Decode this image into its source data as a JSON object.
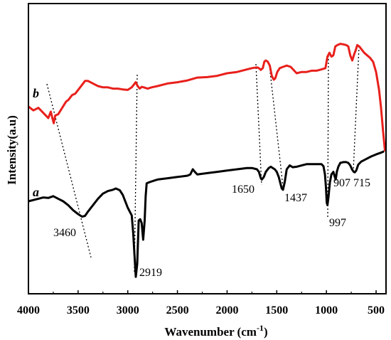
{
  "chart_data": {
    "type": "line",
    "title": "",
    "xlabel": "Wavenumber (cm",
    "xlabel_sup": "-1",
    "xlabel_end": ")",
    "ylabel": "Intensity(a.u)",
    "xlim": [
      4000,
      400
    ],
    "ylim": [
      0,
      1
    ],
    "x_reversed": true,
    "x_ticks": [
      4000,
      3500,
      3000,
      2500,
      2000,
      1500,
      1000,
      500
    ],
    "y_ticks": [],
    "grid": false,
    "legend": "none",
    "series": [
      {
        "label": "b",
        "color": "#e8201c",
        "points": [
          [
            4000,
            0.695
          ],
          [
            3950,
            0.68
          ],
          [
            3900,
            0.69
          ],
          [
            3850,
            0.67
          ],
          [
            3800,
            0.65
          ],
          [
            3775,
            0.675
          ],
          [
            3760,
            0.652
          ],
          [
            3745,
            0.63
          ],
          [
            3730,
            0.66
          ],
          [
            3700,
            0.665
          ],
          [
            3660,
            0.69
          ],
          [
            3620,
            0.715
          ],
          [
            3600,
            0.72
          ],
          [
            3560,
            0.74
          ],
          [
            3530,
            0.745
          ],
          [
            3500,
            0.76
          ],
          [
            3460,
            0.78
          ],
          [
            3430,
            0.795
          ],
          [
            3400,
            0.795
          ],
          [
            3350,
            0.785
          ],
          [
            3300,
            0.775
          ],
          [
            3250,
            0.77
          ],
          [
            3200,
            0.77
          ],
          [
            3150,
            0.765
          ],
          [
            3100,
            0.765
          ],
          [
            3050,
            0.762
          ],
          [
            3000,
            0.76
          ],
          [
            2960,
            0.77
          ],
          [
            2920,
            0.79
          ],
          [
            2900,
            0.775
          ],
          [
            2880,
            0.765
          ],
          [
            2860,
            0.772
          ],
          [
            2840,
            0.77
          ],
          [
            2800,
            0.765
          ],
          [
            2760,
            0.77
          ],
          [
            2700,
            0.775
          ],
          [
            2600,
            0.785
          ],
          [
            2500,
            0.79
          ],
          [
            2400,
            0.797
          ],
          [
            2300,
            0.808
          ],
          [
            2200,
            0.81
          ],
          [
            2100,
            0.815
          ],
          [
            2000,
            0.825
          ],
          [
            1900,
            0.83
          ],
          [
            1800,
            0.84
          ],
          [
            1750,
            0.845
          ],
          [
            1700,
            0.848
          ],
          [
            1680,
            0.845
          ],
          [
            1660,
            0.838
          ],
          [
            1640,
            0.845
          ],
          [
            1625,
            0.87
          ],
          [
            1610,
            0.875
          ],
          [
            1590,
            0.87
          ],
          [
            1570,
            0.855
          ],
          [
            1550,
            0.815
          ],
          [
            1530,
            0.8
          ],
          [
            1515,
            0.805
          ],
          [
            1495,
            0.83
          ],
          [
            1470,
            0.845
          ],
          [
            1437,
            0.85
          ],
          [
            1400,
            0.855
          ],
          [
            1360,
            0.85
          ],
          [
            1300,
            0.825
          ],
          [
            1250,
            0.83
          ],
          [
            1200,
            0.83
          ],
          [
            1150,
            0.835
          ],
          [
            1100,
            0.835
          ],
          [
            1050,
            0.84
          ],
          [
            1010,
            0.845
          ],
          [
            990,
            0.89
          ],
          [
            970,
            0.905
          ],
          [
            950,
            0.89
          ],
          [
            930,
            0.895
          ],
          [
            910,
            0.93
          ],
          [
            890,
            0.935
          ],
          [
            860,
            0.94
          ],
          [
            830,
            0.938
          ],
          [
            800,
            0.935
          ],
          [
            780,
            0.93
          ],
          [
            760,
            0.895
          ],
          [
            740,
            0.875
          ],
          [
            720,
            0.9
          ],
          [
            705,
            0.915
          ],
          [
            690,
            0.935
          ],
          [
            670,
            0.93
          ],
          [
            650,
            0.92
          ],
          [
            620,
            0.905
          ],
          [
            590,
            0.895
          ],
          [
            560,
            0.885
          ],
          [
            530,
            0.87
          ],
          [
            500,
            0.83
          ],
          [
            470,
            0.76
          ],
          [
            450,
            0.69
          ],
          [
            430,
            0.6
          ],
          [
            410,
            0.52
          ]
        ]
      },
      {
        "label": "a",
        "color": "#000000",
        "points": [
          [
            4000,
            0.325
          ],
          [
            3950,
            0.33
          ],
          [
            3900,
            0.335
          ],
          [
            3850,
            0.34
          ],
          [
            3800,
            0.338
          ],
          [
            3750,
            0.345
          ],
          [
            3700,
            0.335
          ],
          [
            3650,
            0.325
          ],
          [
            3600,
            0.31
          ],
          [
            3550,
            0.29
          ],
          [
            3500,
            0.275
          ],
          [
            3460,
            0.265
          ],
          [
            3430,
            0.268
          ],
          [
            3400,
            0.285
          ],
          [
            3350,
            0.31
          ],
          [
            3300,
            0.335
          ],
          [
            3250,
            0.355
          ],
          [
            3200,
            0.365
          ],
          [
            3150,
            0.37
          ],
          [
            3120,
            0.375
          ],
          [
            3080,
            0.368
          ],
          [
            3050,
            0.35
          ],
          [
            3020,
            0.32
          ],
          [
            3000,
            0.3
          ],
          [
            2980,
            0.285
          ],
          [
            2960,
            0.27
          ],
          [
            2945,
            0.2
          ],
          [
            2930,
            0.1
          ],
          [
            2919,
            0.03
          ],
          [
            2905,
            0.08
          ],
          [
            2890,
            0.25
          ],
          [
            2875,
            0.255
          ],
          [
            2860,
            0.24
          ],
          [
            2845,
            0.175
          ],
          [
            2830,
            0.25
          ],
          [
            2820,
            0.345
          ],
          [
            2810,
            0.395
          ],
          [
            2780,
            0.4
          ],
          [
            2740,
            0.405
          ],
          [
            2700,
            0.41
          ],
          [
            2600,
            0.415
          ],
          [
            2500,
            0.42
          ],
          [
            2400,
            0.425
          ],
          [
            2370,
            0.43
          ],
          [
            2345,
            0.45
          ],
          [
            2325,
            0.44
          ],
          [
            2300,
            0.43
          ],
          [
            2200,
            0.435
          ],
          [
            2100,
            0.44
          ],
          [
            2000,
            0.445
          ],
          [
            1900,
            0.45
          ],
          [
            1800,
            0.455
          ],
          [
            1750,
            0.455
          ],
          [
            1700,
            0.45
          ],
          [
            1680,
            0.44
          ],
          [
            1660,
            0.415
          ],
          [
            1650,
            0.41
          ],
          [
            1630,
            0.42
          ],
          [
            1610,
            0.44
          ],
          [
            1580,
            0.455
          ],
          [
            1560,
            0.46
          ],
          [
            1540,
            0.455
          ],
          [
            1520,
            0.45
          ],
          [
            1500,
            0.44
          ],
          [
            1480,
            0.42
          ],
          [
            1460,
            0.39
          ],
          [
            1450,
            0.375
          ],
          [
            1437,
            0.37
          ],
          [
            1420,
            0.4
          ],
          [
            1400,
            0.45
          ],
          [
            1370,
            0.465
          ],
          [
            1340,
            0.458
          ],
          [
            1300,
            0.46
          ],
          [
            1250,
            0.465
          ],
          [
            1200,
            0.47
          ],
          [
            1150,
            0.47
          ],
          [
            1100,
            0.47
          ],
          [
            1050,
            0.47
          ],
          [
            1030,
            0.462
          ],
          [
            1015,
            0.43
          ],
          [
            1005,
            0.38
          ],
          [
            997,
            0.32
          ],
          [
            990,
            0.31
          ],
          [
            980,
            0.34
          ],
          [
            965,
            0.4
          ],
          [
            950,
            0.43
          ],
          [
            930,
            0.44
          ],
          [
            915,
            0.42
          ],
          [
            907,
            0.41
          ],
          [
            895,
            0.44
          ],
          [
            880,
            0.46
          ],
          [
            860,
            0.475
          ],
          [
            830,
            0.478
          ],
          [
            800,
            0.478
          ],
          [
            780,
            0.475
          ],
          [
            760,
            0.465
          ],
          [
            740,
            0.448
          ],
          [
            725,
            0.44
          ],
          [
            715,
            0.438
          ],
          [
            700,
            0.445
          ],
          [
            680,
            0.468
          ],
          [
            650,
            0.48
          ],
          [
            600,
            0.49
          ],
          [
            550,
            0.5
          ],
          [
            500,
            0.508
          ],
          [
            450,
            0.515
          ],
          [
            420,
            0.52
          ]
        ]
      }
    ],
    "annotations": [
      {
        "label": "3460"
      },
      {
        "label": "2919"
      },
      {
        "label": "1650"
      },
      {
        "label": "1437"
      },
      {
        "label": "997"
      },
      {
        "label": "907"
      },
      {
        "label": "715"
      }
    ]
  }
}
